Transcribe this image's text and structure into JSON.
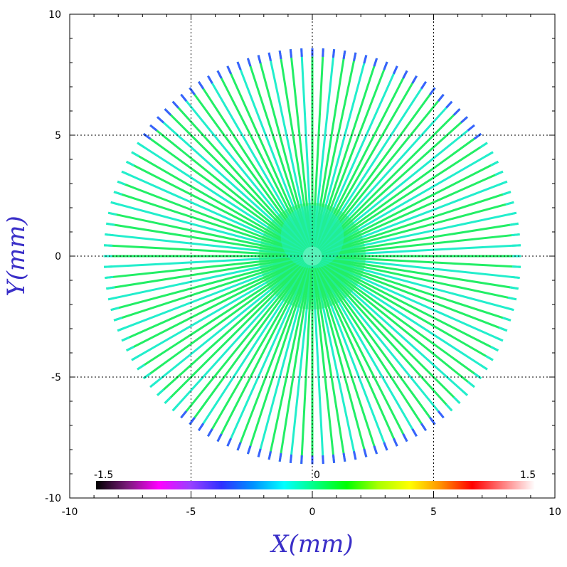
{
  "chart_data": {
    "type": "scatter",
    "title": "",
    "xlabel": "X(mm)",
    "ylabel": "Y(mm)",
    "xlim": [
      -10,
      10
    ],
    "ylim": [
      -10,
      10
    ],
    "xticks": [
      -10,
      -5,
      0,
      5,
      10
    ],
    "yticks": [
      -10,
      -5,
      0,
      5,
      10
    ],
    "grid": true,
    "grid_style": "dotted",
    "pattern": "radial spokes",
    "spoke_count": 120,
    "spoke_max_radius_mm": 8.6,
    "spoke_inner_radius_mm": 0.4,
    "colorbar": {
      "min": -1.5,
      "max": 1.5,
      "labels": [
        "-1.5",
        "0",
        "1.5"
      ],
      "placement": "bottom-inside",
      "colormap": [
        "#000000",
        "#7a1a7a",
        "#ff00ff",
        "#9a40ff",
        "#3030ff",
        "#0090ff",
        "#00ffff",
        "#00ff80",
        "#00ff00",
        "#a8ff00",
        "#ffff00",
        "#ff9000",
        "#ff0000",
        "#ff8080",
        "#ffffff"
      ]
    },
    "colors": {
      "spoke_main": "#22ee66",
      "spoke_alt": "#22eecc",
      "spoke_edge": "#3a60ff",
      "axis_title": "#3a2fc8"
    }
  }
}
